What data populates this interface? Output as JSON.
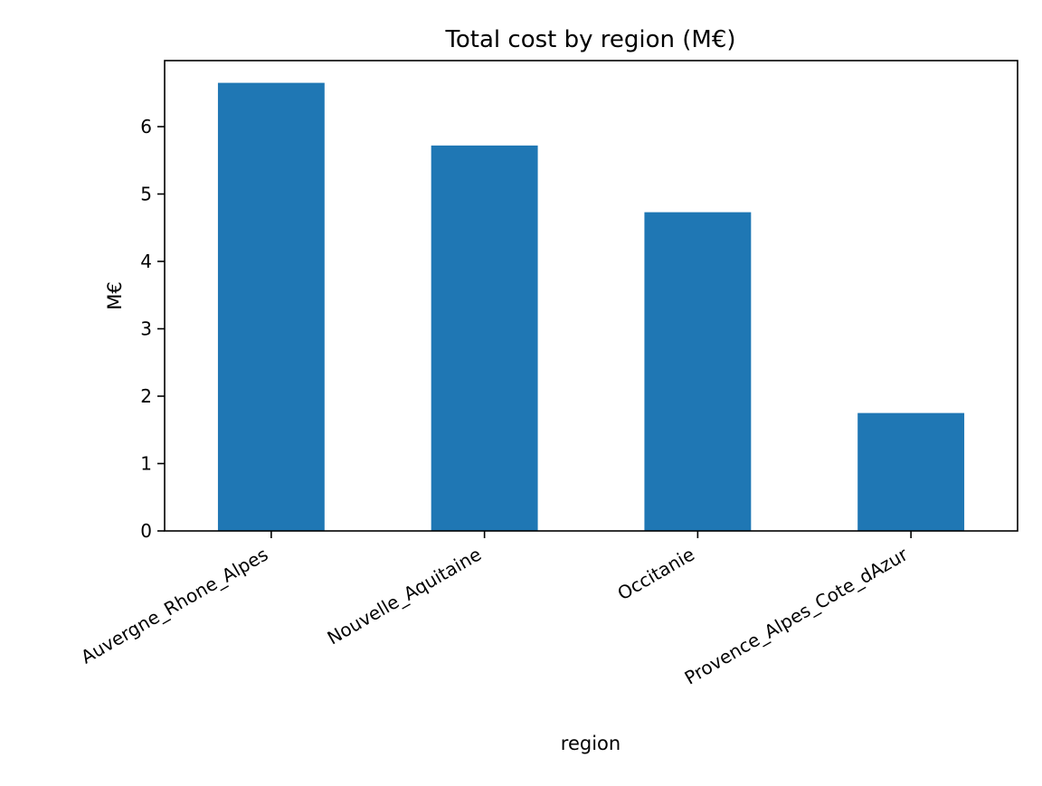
{
  "chart_data": {
    "type": "bar",
    "title": "Total cost by region (M€)",
    "xlabel": "region",
    "ylabel": "M€",
    "categories": [
      "Auvergne_Rhone_Alpes",
      "Nouvelle_Aquitaine",
      "Occitanie",
      "Provence_Alpes_Cote_dAzur"
    ],
    "values": [
      6.65,
      5.72,
      4.73,
      1.75
    ],
    "ylim": [
      0,
      6.98
    ],
    "yticks": [
      0,
      1,
      2,
      3,
      4,
      5,
      6
    ],
    "grid": false,
    "legend": "none",
    "bar_color": "#1f77b4"
  }
}
